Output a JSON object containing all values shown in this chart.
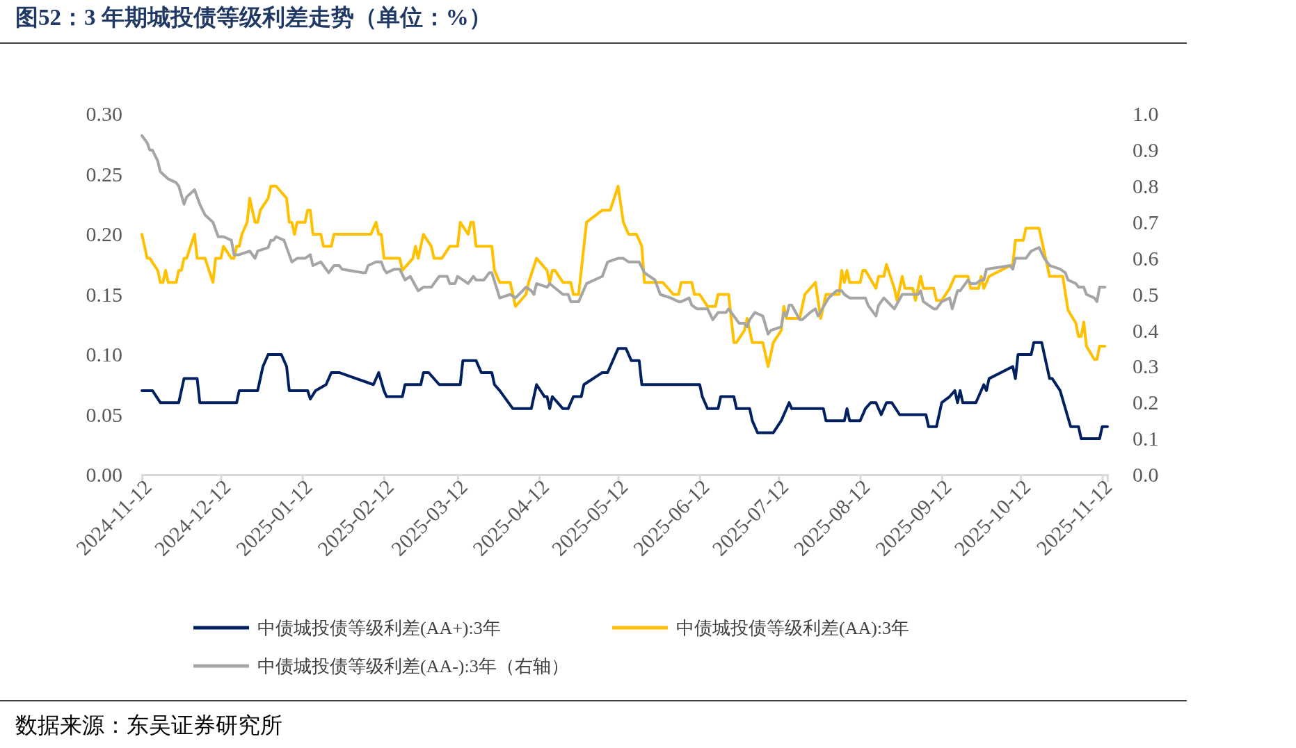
{
  "chart_data": {
    "type": "line",
    "title": "图52：3 年期城投债等级利差走势（单位：%）",
    "annotations": [
      "数据来源：东吴证券研究所"
    ],
    "xlim": [
      "2024-11-12",
      "2025-11-14"
    ],
    "xticks": [
      "2024-11-12",
      "2024-12-12",
      "2025-01-12",
      "2025-02-12",
      "2025-03-12",
      "2025-04-12",
      "2025-05-12",
      "2025-06-12",
      "2025-07-12",
      "2025-08-12",
      "2025-09-12",
      "2025-10-12",
      "2025-11-12"
    ],
    "ylim": [
      0,
      0.3
    ],
    "yticks": [
      {
        "value": 0,
        "label": "0.00"
      },
      {
        "value": 0.05,
        "label": "0.05"
      },
      {
        "value": 0.1,
        "label": "0.10"
      },
      {
        "value": 0.15,
        "label": "0.15"
      },
      {
        "value": 0.2,
        "label": "0.20"
      },
      {
        "value": 0.25,
        "label": "0.25"
      },
      {
        "value": 0.3,
        "label": "0.30"
      }
    ],
    "y2lim": [
      0,
      1
    ],
    "y2ticks": [
      {
        "value": 0,
        "label": "0.0"
      },
      {
        "value": 0.1,
        "label": "0.1"
      },
      {
        "value": 0.2,
        "label": "0.2"
      },
      {
        "value": 0.3,
        "label": "0.3"
      },
      {
        "value": 0.4,
        "label": "0.4"
      },
      {
        "value": 0.5,
        "label": "0.5"
      },
      {
        "value": 0.6,
        "label": "0.6"
      },
      {
        "value": 0.7,
        "label": "0.7"
      },
      {
        "value": 0.8,
        "label": "0.8"
      },
      {
        "value": 0.9,
        "label": "0.9"
      },
      {
        "value": 1,
        "label": "1.0"
      }
    ],
    "grid": false,
    "legend": "bottom",
    "marker": "none",
    "line_style": "solid",
    "series": [
      {
        "name": "中债城投债等级利差(AA+):3年",
        "color": "#002060",
        "x": [
          "2024-11-12",
          "2024-11-16",
          "2024-11-19",
          "2024-11-26",
          "2024-11-27",
          "2024-11-28",
          "2024-12-03",
          "2024-12-04",
          "2024-12-18",
          "2024-12-19",
          "2024-12-26",
          "2024-12-28",
          "2024-12-30",
          "2025-01-04",
          "2025-01-06",
          "2025-01-07",
          "2025-01-14",
          "2025-01-15",
          "2025-01-17",
          "2025-01-21",
          "2025-01-23",
          "2025-01-26",
          "2025-02-08",
          "2025-02-10",
          "2025-02-12",
          "2025-02-13",
          "2025-02-19",
          "2025-02-20",
          "2025-02-26",
          "2025-02-27",
          "2025-03-01",
          "2025-03-05",
          "2025-03-13",
          "2025-03-14",
          "2025-03-19",
          "2025-03-21",
          "2025-03-25",
          "2025-03-26",
          "2025-03-28",
          "2025-04-02",
          "2025-04-09",
          "2025-04-11",
          "2025-04-14",
          "2025-04-15",
          "2025-04-16",
          "2025-04-17",
          "2025-04-21",
          "2025-04-23",
          "2025-04-25",
          "2025-04-28",
          "2025-04-29",
          "2025-05-06",
          "2025-05-08",
          "2025-05-12",
          "2025-05-15",
          "2025-05-17",
          "2025-05-20",
          "2025-05-21",
          "2025-06-12",
          "2025-06-13",
          "2025-06-15",
          "2025-06-19",
          "2025-06-20",
          "2025-06-25",
          "2025-06-26",
          "2025-07-01",
          "2025-07-02",
          "2025-07-04",
          "2025-07-10",
          "2025-07-13",
          "2025-07-16",
          "2025-07-17",
          "2025-07-29",
          "2025-07-30",
          "2025-08-06",
          "2025-08-07",
          "2025-08-08",
          "2025-08-12",
          "2025-08-14",
          "2025-08-16",
          "2025-08-18",
          "2025-08-20",
          "2025-08-22",
          "2025-08-24",
          "2025-08-27",
          "2025-09-06",
          "2025-09-07",
          "2025-09-10",
          "2025-09-11",
          "2025-09-12",
          "2025-09-15",
          "2025-09-17",
          "2025-09-18",
          "2025-09-19",
          "2025-09-20",
          "2025-09-25",
          "2025-09-26",
          "2025-09-28",
          "2025-09-29",
          "2025-09-30",
          "2025-10-09",
          "2025-10-10",
          "2025-10-11",
          "2025-10-16",
          "2025-10-17",
          "2025-10-20",
          "2025-10-23",
          "2025-10-24",
          "2025-10-27",
          "2025-10-31",
          "2025-11-03",
          "2025-11-04",
          "2025-11-11",
          "2025-11-12",
          "2025-11-14"
        ],
        "values": [
          0.07,
          0.07,
          0.06,
          0.06,
          0.07,
          0.08,
          0.08,
          0.06,
          0.06,
          0.07,
          0.07,
          0.09,
          0.1,
          0.1,
          0.09,
          0.07,
          0.07,
          0.063,
          0.07,
          0.075,
          0.085,
          0.085,
          0.075,
          0.085,
          0.07,
          0.065,
          0.065,
          0.075,
          0.075,
          0.085,
          0.085,
          0.075,
          0.075,
          0.095,
          0.095,
          0.085,
          0.085,
          0.075,
          0.07,
          0.055,
          0.055,
          0.075,
          0.065,
          0.065,
          0.055,
          0.065,
          0.055,
          0.055,
          0.065,
          0.065,
          0.075,
          0.085,
          0.085,
          0.105,
          0.105,
          0.095,
          0.095,
          0.075,
          0.075,
          0.065,
          0.055,
          0.055,
          0.065,
          0.065,
          0.055,
          0.055,
          0.045,
          0.035,
          0.035,
          0.045,
          0.06,
          0.055,
          0.055,
          0.045,
          0.045,
          0.055,
          0.045,
          0.045,
          0.055,
          0.06,
          0.06,
          0.05,
          0.06,
          0.06,
          0.05,
          0.05,
          0.04,
          0.04,
          0.05,
          0.06,
          0.065,
          0.07,
          0.06,
          0.07,
          0.06,
          0.06,
          0.065,
          0.075,
          0.07,
          0.08,
          0.09,
          0.08,
          0.1,
          0.1,
          0.11,
          0.11,
          0.08,
          0.08,
          0.07,
          0.04,
          0.04,
          0.03,
          0.03,
          0.04,
          0.04
        ]
      },
      {
        "name": "中债城投债等级利差(AA):3年",
        "color": "#ffc000",
        "x": [
          "2024-11-12",
          "2024-11-14",
          "2024-11-15",
          "2024-11-18",
          "2024-11-19",
          "2024-11-20",
          "2024-11-21",
          "2024-11-22",
          "2024-11-25",
          "2024-11-26",
          "2024-11-27",
          "2024-11-28",
          "2024-11-29",
          "2024-12-02",
          "2024-12-03",
          "2024-12-06",
          "2024-12-09",
          "2024-12-10",
          "2024-12-12",
          "2024-12-13",
          "2024-12-16",
          "2024-12-17",
          "2024-12-18",
          "2024-12-19",
          "2024-12-20",
          "2024-12-22",
          "2024-12-23",
          "2024-12-25",
          "2024-12-26",
          "2024-12-27",
          "2024-12-30",
          "2024-12-31",
          "2025-01-02",
          "2025-01-06",
          "2025-01-07",
          "2025-01-08",
          "2025-01-09",
          "2025-01-10",
          "2025-01-13",
          "2025-01-14",
          "2025-01-15",
          "2025-01-16",
          "2025-01-19",
          "2025-01-20",
          "2025-01-23",
          "2025-01-24",
          "2025-02-07",
          "2025-02-09",
          "2025-02-10",
          "2025-02-11",
          "2025-02-12",
          "2025-02-18",
          "2025-02-19",
          "2025-02-23",
          "2025-02-24",
          "2025-02-25",
          "2025-02-27",
          "2025-03-02",
          "2025-03-03",
          "2025-03-06",
          "2025-03-09",
          "2025-03-12",
          "2025-03-13",
          "2025-03-16",
          "2025-03-17",
          "2025-03-18",
          "2025-03-19",
          "2025-03-25",
          "2025-03-26",
          "2025-03-28",
          "2025-04-01",
          "2025-04-03",
          "2025-04-07",
          "2025-04-08",
          "2025-04-11",
          "2025-04-15",
          "2025-04-16",
          "2025-04-17",
          "2025-04-18",
          "2025-04-21",
          "2025-04-24",
          "2025-04-25",
          "2025-04-27",
          "2025-04-30",
          "2025-05-06",
          "2025-05-09",
          "2025-05-12",
          "2025-05-14",
          "2025-05-16",
          "2025-05-19",
          "2025-05-21",
          "2025-05-22",
          "2025-05-29",
          "2025-06-02",
          "2025-06-04",
          "2025-06-05",
          "2025-06-09",
          "2025-06-10",
          "2025-06-12",
          "2025-06-15",
          "2025-06-18",
          "2025-06-19",
          "2025-06-23",
          "2025-06-25",
          "2025-06-26",
          "2025-06-29",
          "2025-06-30",
          "2025-07-02",
          "2025-07-06",
          "2025-07-08",
          "2025-07-10",
          "2025-07-13",
          "2025-07-14",
          "2025-07-15",
          "2025-07-20",
          "2025-07-21",
          "2025-07-22",
          "2025-07-26",
          "2025-07-28",
          "2025-07-30",
          "2025-08-01",
          "2025-08-04",
          "2025-08-05",
          "2025-08-06",
          "2025-08-07",
          "2025-08-08",
          "2025-08-12",
          "2025-08-13",
          "2025-08-14",
          "2025-08-18",
          "2025-08-19",
          "2025-08-21",
          "2025-08-22",
          "2025-08-25",
          "2025-08-26",
          "2025-08-28",
          "2025-08-29",
          "2025-09-01",
          "2025-09-02",
          "2025-09-04",
          "2025-09-05",
          "2025-09-09",
          "2025-09-10",
          "2025-09-12",
          "2025-09-15",
          "2025-09-17",
          "2025-09-22",
          "2025-09-23",
          "2025-09-26",
          "2025-09-27",
          "2025-09-28",
          "2025-09-30",
          "2025-10-09",
          "2025-10-10",
          "2025-10-13",
          "2025-10-14",
          "2025-10-19",
          "2025-10-23",
          "2025-10-28",
          "2025-10-30",
          "2025-11-02",
          "2025-11-03",
          "2025-11-04",
          "2025-11-05",
          "2025-11-06",
          "2025-11-09",
          "2025-11-10",
          "2025-11-11",
          "2025-11-13"
        ],
        "values": [
          0.2,
          0.18,
          0.18,
          0.17,
          0.16,
          0.16,
          0.17,
          0.16,
          0.16,
          0.17,
          0.17,
          0.18,
          0.18,
          0.2,
          0.18,
          0.18,
          0.16,
          0.18,
          0.18,
          0.19,
          0.18,
          0.18,
          0.19,
          0.19,
          0.2,
          0.21,
          0.23,
          0.21,
          0.21,
          0.22,
          0.23,
          0.24,
          0.24,
          0.23,
          0.21,
          0.21,
          0.2,
          0.21,
          0.21,
          0.22,
          0.22,
          0.2,
          0.2,
          0.19,
          0.19,
          0.2,
          0.2,
          0.21,
          0.2,
          0.2,
          0.18,
          0.18,
          0.17,
          0.18,
          0.19,
          0.18,
          0.2,
          0.19,
          0.18,
          0.18,
          0.19,
          0.19,
          0.21,
          0.2,
          0.21,
          0.21,
          0.19,
          0.19,
          0.17,
          0.16,
          0.16,
          0.14,
          0.15,
          0.16,
          0.18,
          0.17,
          0.16,
          0.17,
          0.17,
          0.16,
          0.16,
          0.15,
          0.15,
          0.21,
          0.22,
          0.22,
          0.24,
          0.21,
          0.2,
          0.2,
          0.19,
          0.16,
          0.16,
          0.15,
          0.15,
          0.16,
          0.16,
          0.15,
          0.15,
          0.14,
          0.14,
          0.15,
          0.15,
          0.11,
          0.11,
          0.12,
          0.13,
          0.11,
          0.11,
          0.09,
          0.11,
          0.12,
          0.14,
          0.13,
          0.13,
          0.14,
          0.15,
          0.16,
          0.13,
          0.15,
          0.15,
          0.15,
          0.17,
          0.16,
          0.17,
          0.16,
          0.16,
          0.17,
          0.17,
          0.155,
          0.165,
          0.165,
          0.175,
          0.155,
          0.145,
          0.165,
          0.155,
          0.155,
          0.145,
          0.165,
          0.155,
          0.155,
          0.145,
          0.145,
          0.155,
          0.165,
          0.165,
          0.155,
          0.155,
          0.165,
          0.155,
          0.165,
          0.175,
          0.195,
          0.195,
          0.205,
          0.205,
          0.165,
          0.165,
          0.137,
          0.126,
          0.115,
          0.115,
          0.127,
          0.107,
          0.096,
          0.096,
          0.107,
          0.107
        ]
      },
      {
        "name": "中债城投债等级利差(AA-):3年（右轴）",
        "color": "#a5a5a5",
        "axis": "y2",
        "x": [
          "2024-11-12",
          "2024-11-14",
          "2024-11-15",
          "2024-11-16",
          "2024-11-18",
          "2024-11-19",
          "2024-11-22",
          "2024-11-25",
          "2024-11-26",
          "2024-11-28",
          "2024-11-29",
          "2024-12-02",
          "2024-12-04",
          "2024-12-06",
          "2024-12-09",
          "2024-12-11",
          "2024-12-13",
          "2024-12-16",
          "2024-12-17",
          "2024-12-19",
          "2024-12-23",
          "2024-12-25",
          "2024-12-26",
          "2024-12-30",
          "2024-12-31",
          "2025-01-01",
          "2025-01-02",
          "2025-01-05",
          "2025-01-07",
          "2025-01-08",
          "2025-01-10",
          "2025-01-13",
          "2025-01-15",
          "2025-01-16",
          "2025-01-19",
          "2025-01-22",
          "2025-01-24",
          "2025-01-26",
          "2025-01-27",
          "2025-02-04",
          "2025-02-05",
          "2025-02-06",
          "2025-02-09",
          "2025-02-11",
          "2025-02-12",
          "2025-02-13",
          "2025-02-16",
          "2025-02-18",
          "2025-02-20",
          "2025-02-22",
          "2025-02-25",
          "2025-02-27",
          "2025-03-02",
          "2025-03-05",
          "2025-03-08",
          "2025-03-09",
          "2025-03-11",
          "2025-03-12",
          "2025-03-16",
          "2025-03-18",
          "2025-03-19",
          "2025-03-22",
          "2025-03-24",
          "2025-03-25",
          "2025-03-28",
          "2025-04-01",
          "2025-04-03",
          "2025-04-07",
          "2025-04-09",
          "2025-04-10",
          "2025-04-11",
          "2025-04-15",
          "2025-04-16",
          "2025-04-21",
          "2025-04-23",
          "2025-04-24",
          "2025-04-27",
          "2025-04-30",
          "2025-05-06",
          "2025-05-08",
          "2025-05-12",
          "2025-05-14",
          "2025-05-16",
          "2025-05-20",
          "2025-05-22",
          "2025-05-26",
          "2025-05-28",
          "2025-06-01",
          "2025-06-04",
          "2025-06-05",
          "2025-06-08",
          "2025-06-09",
          "2025-06-11",
          "2025-06-15",
          "2025-06-17",
          "2025-06-19",
          "2025-06-22",
          "2025-06-23",
          "2025-06-25",
          "2025-06-27",
          "2025-06-29",
          "2025-06-30",
          "2025-07-01",
          "2025-07-03",
          "2025-07-06",
          "2025-07-08",
          "2025-07-09",
          "2025-07-13",
          "2025-07-14",
          "2025-07-15",
          "2025-07-16",
          "2025-07-17",
          "2025-07-20",
          "2025-07-21",
          "2025-07-24",
          "2025-07-26",
          "2025-07-27",
          "2025-07-31",
          "2025-08-03",
          "2025-08-05",
          "2025-08-06",
          "2025-08-08",
          "2025-08-14",
          "2025-08-15",
          "2025-08-18",
          "2025-08-19",
          "2025-08-21",
          "2025-08-25",
          "2025-08-28",
          "2025-09-03",
          "2025-09-04",
          "2025-09-05",
          "2025-09-07",
          "2025-09-09",
          "2025-09-10",
          "2025-09-12",
          "2025-09-15",
          "2025-09-16",
          "2025-09-18",
          "2025-09-19",
          "2025-09-22",
          "2025-09-23",
          "2025-09-25",
          "2025-09-27",
          "2025-09-28",
          "2025-09-29",
          "2025-10-08",
          "2025-10-09",
          "2025-10-10",
          "2025-10-14",
          "2025-10-16",
          "2025-10-19",
          "2025-10-21",
          "2025-10-23",
          "2025-10-27",
          "2025-10-29",
          "2025-10-30",
          "2025-11-02",
          "2025-11-03",
          "2025-11-05",
          "2025-11-06",
          "2025-11-09",
          "2025-11-10",
          "2025-11-11",
          "2025-11-13"
        ],
        "values": [
          0.94,
          0.92,
          0.9,
          0.9,
          0.87,
          0.84,
          0.82,
          0.81,
          0.8,
          0.75,
          0.77,
          0.79,
          0.75,
          0.72,
          0.7,
          0.66,
          0.66,
          0.65,
          0.61,
          0.61,
          0.62,
          0.6,
          0.62,
          0.63,
          0.65,
          0.65,
          0.66,
          0.65,
          0.61,
          0.59,
          0.6,
          0.6,
          0.61,
          0.58,
          0.59,
          0.56,
          0.58,
          0.58,
          0.57,
          0.56,
          0.56,
          0.58,
          0.59,
          0.59,
          0.57,
          0.56,
          0.57,
          0.57,
          0.54,
          0.55,
          0.51,
          0.52,
          0.52,
          0.55,
          0.55,
          0.53,
          0.53,
          0.55,
          0.53,
          0.55,
          0.54,
          0.54,
          0.56,
          0.56,
          0.49,
          0.5,
          0.49,
          0.52,
          0.51,
          0.5,
          0.53,
          0.52,
          0.53,
          0.5,
          0.5,
          0.48,
          0.48,
          0.53,
          0.55,
          0.59,
          0.6,
          0.6,
          0.59,
          0.59,
          0.56,
          0.54,
          0.5,
          0.49,
          0.48,
          0.48,
          0.49,
          0.47,
          0.46,
          0.46,
          0.43,
          0.45,
          0.45,
          0.46,
          0.44,
          0.42,
          0.42,
          0.41,
          0.43,
          0.45,
          0.44,
          0.39,
          0.4,
          0.41,
          0.45,
          0.44,
          0.47,
          0.47,
          0.43,
          0.43,
          0.45,
          0.46,
          0.44,
          0.49,
          0.51,
          0.51,
          0.5,
          0.49,
          0.49,
          0.47,
          0.44,
          0.47,
          0.49,
          0.46,
          0.5,
          0.5,
          0.51,
          0.48,
          0.47,
          0.46,
          0.46,
          0.48,
          0.49,
          0.46,
          0.51,
          0.51,
          0.54,
          0.53,
          0.53,
          0.54,
          0.54,
          0.57,
          0.58,
          0.57,
          0.6,
          0.6,
          0.62,
          0.63,
          0.6,
          0.58,
          0.57,
          0.56,
          0.54,
          0.53,
          0.52,
          0.52,
          0.5,
          0.49,
          0.48,
          0.52,
          0.52
        ]
      }
    ]
  }
}
